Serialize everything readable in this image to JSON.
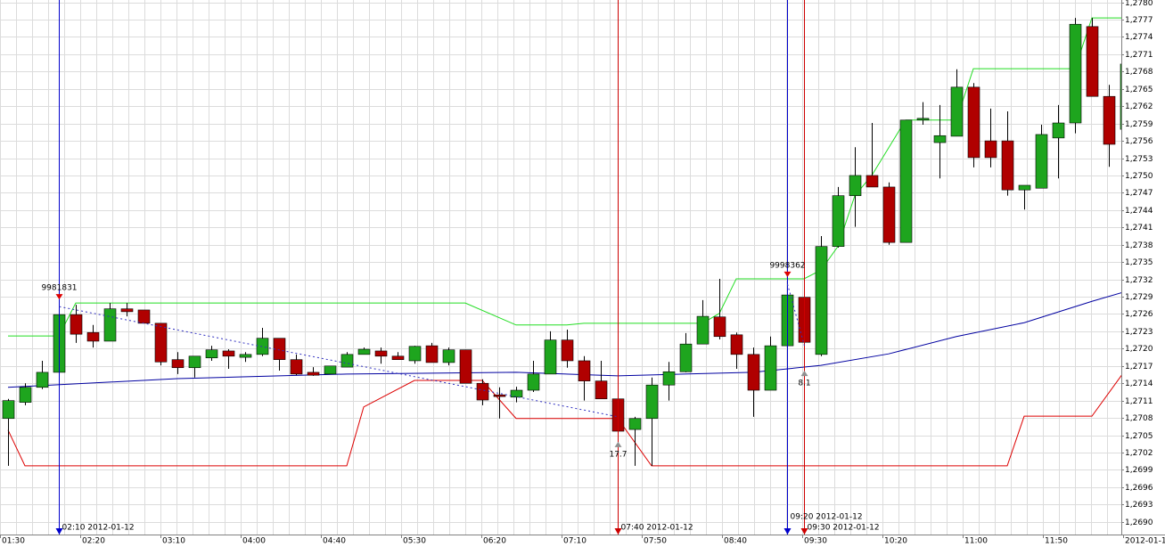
{
  "chart_data": {
    "type": "candlestick",
    "open": [
      1.27079,
      1.27107,
      1.27133,
      1.27159,
      1.27259,
      1.27228,
      1.27213,
      1.27269,
      1.27267,
      1.27244,
      1.27181,
      1.27167,
      1.27184,
      1.27196,
      1.27185,
      1.2719,
      1.27218,
      1.27181,
      1.27159,
      1.27156,
      1.27168,
      1.2719,
      1.27196,
      1.27187,
      1.27179,
      1.27205,
      1.27176,
      1.27198,
      1.2714,
      1.2712,
      1.27116,
      1.27128,
      1.27156,
      1.27215,
      1.27179,
      1.27144,
      1.27113,
      1.2706,
      1.27079,
      1.27137,
      1.2716,
      1.27208,
      1.27255,
      1.27224,
      1.2719,
      1.27128,
      1.27205,
      1.27289,
      1.2719,
      1.27377,
      1.27465,
      1.275,
      1.2748,
      1.27384,
      1.27596,
      1.27557,
      1.27568,
      1.27653,
      1.2756,
      1.2756,
      1.27475,
      1.27478,
      1.27565,
      1.27591,
      1.27758,
      1.27637,
      1.2758
    ],
    "high": [
      1.27113,
      1.2714,
      1.27179,
      1.27279,
      1.27276,
      1.27241,
      1.27279,
      1.27279,
      1.27267,
      1.27244,
      1.27194,
      1.27187,
      1.27205,
      1.27199,
      1.27194,
      1.27236,
      1.27218,
      1.2719,
      1.27168,
      1.2717,
      1.27194,
      1.27202,
      1.27202,
      1.27194,
      1.27205,
      1.2721,
      1.27202,
      1.27198,
      1.27147,
      1.27133,
      1.27134,
      1.27179,
      1.2723,
      1.27233,
      1.27187,
      1.27179,
      1.27133,
      1.27082,
      1.2715,
      1.27177,
      1.27227,
      1.27284,
      1.27321,
      1.27228,
      1.27202,
      1.27221,
      1.27318,
      1.27329,
      1.27395,
      1.2748,
      1.27549,
      1.27591,
      1.27488,
      1.27596,
      1.27627,
      1.27622,
      1.27684,
      1.2766,
      1.27616,
      1.27611,
      1.27483,
      1.27588,
      1.27622,
      1.27773,
      1.27773,
      1.27657,
      1.27693
    ],
    "low": [
      1.26997,
      1.27102,
      1.2713,
      1.27159,
      1.2721,
      1.27202,
      1.27213,
      1.27256,
      1.27244,
      1.27171,
      1.27156,
      1.2715,
      1.27179,
      1.27165,
      1.27177,
      1.27187,
      1.27162,
      1.27154,
      1.27153,
      1.27156,
      1.27168,
      1.2719,
      1.27174,
      1.27181,
      1.27174,
      1.27176,
      1.27171,
      1.2714,
      1.27102,
      1.27079,
      1.27107,
      1.27125,
      1.27156,
      1.27167,
      1.2711,
      1.27113,
      1.27048,
      1.26997,
      1.26997,
      1.2711,
      1.27159,
      1.27208,
      1.27216,
      1.27165,
      1.27082,
      1.27128,
      1.27202,
      1.27171,
      1.27187,
      1.27375,
      1.27411,
      1.2748,
      1.2738,
      1.27384,
      1.27588,
      1.27495,
      1.27568,
      1.27514,
      1.27514,
      1.27465,
      1.27441,
      1.27478,
      1.27495,
      1.27573,
      1.27637,
      1.27515,
      1.2758
    ],
    "close": [
      1.2711,
      1.27133,
      1.27159,
      1.27259,
      1.27225,
      1.27213,
      1.27269,
      1.27264,
      1.27244,
      1.27177,
      1.27167,
      1.27187,
      1.27198,
      1.27187,
      1.2719,
      1.27218,
      1.27181,
      1.27156,
      1.27154,
      1.2717,
      1.2719,
      1.27199,
      1.27187,
      1.27181,
      1.27204,
      1.27176,
      1.27198,
      1.2714,
      1.27111,
      1.27117,
      1.27128,
      1.27156,
      1.27215,
      1.27179,
      1.27144,
      1.27113,
      1.27057,
      1.27079,
      1.27137,
      1.2716,
      1.27208,
      1.27256,
      1.27221,
      1.2719,
      1.27128,
      1.27205,
      1.27293,
      1.27211,
      1.27377,
      1.27465,
      1.275,
      1.2748,
      1.27384,
      1.27596,
      1.27599,
      1.27569,
      1.27653,
      1.27531,
      1.27531,
      1.27475,
      1.27483,
      1.27571,
      1.27591,
      1.27762,
      1.27637,
      1.27554,
      1.27693
    ],
    "up_color": "#1ea51e",
    "down_color": "#b00000",
    "ylim": [
      1.26878,
      1.27804
    ],
    "yticks": [
      {
        "value": 1.269,
        "label": "1,2690"
      },
      {
        "value": 1.2693,
        "label": "1,2693"
      },
      {
        "value": 1.2696,
        "label": "1,2696"
      },
      {
        "value": 1.2699,
        "label": "1,2699"
      },
      {
        "value": 1.2702,
        "label": "1,2702"
      },
      {
        "value": 1.2705,
        "label": "1,2705"
      },
      {
        "value": 1.2708,
        "label": "1,2708"
      },
      {
        "value": 1.2711,
        "label": "1,2711"
      },
      {
        "value": 1.2714,
        "label": "1,2714"
      },
      {
        "value": 1.2717,
        "label": "1,2717"
      },
      {
        "value": 1.272,
        "label": "1,2720"
      },
      {
        "value": 1.2723,
        "label": "1,2723"
      },
      {
        "value": 1.2726,
        "label": "1,2726"
      },
      {
        "value": 1.2729,
        "label": "1,2729"
      },
      {
        "value": 1.2732,
        "label": "1,2732"
      },
      {
        "value": 1.2735,
        "label": "1,2735"
      },
      {
        "value": 1.2738,
        "label": "1,2738"
      },
      {
        "value": 1.2741,
        "label": "1,2741"
      },
      {
        "value": 1.2744,
        "label": "1,2744"
      },
      {
        "value": 1.2747,
        "label": "1,2747"
      },
      {
        "value": 1.275,
        "label": "1,2750"
      },
      {
        "value": 1.2753,
        "label": "1,2753"
      },
      {
        "value": 1.2756,
        "label": "1,2756"
      },
      {
        "value": 1.2759,
        "label": "1,2759"
      },
      {
        "value": 1.2762,
        "label": "1,2762"
      },
      {
        "value": 1.2765,
        "label": "1,2765"
      },
      {
        "value": 1.2768,
        "label": "1,2768"
      },
      {
        "value": 1.2771,
        "label": "1,2771"
      },
      {
        "value": 1.2774,
        "label": "1,2774"
      },
      {
        "value": 1.2777,
        "label": "1,2777"
      },
      {
        "value": 1.278,
        "label": "1,2780"
      }
    ],
    "xtick_labels": [
      "01:30",
      "02:20",
      "03:10",
      "04:00",
      "04:40",
      "05:30",
      "06:20",
      "07:10",
      "07:50",
      "08:40",
      "09:30",
      "10:20",
      "11:00",
      "11:50",
      "2012-01-1"
    ],
    "grid": true,
    "lines": [
      {
        "color": "#22dd22",
        "x": [
          0,
          3,
          4,
          27,
          30,
          33,
          34,
          41,
          42,
          43,
          47,
          48,
          49,
          50,
          51,
          53,
          56,
          57,
          63,
          64,
          66
        ],
        "values": [
          1.27222,
          1.27222,
          1.27279,
          1.27279,
          1.27241,
          1.27241,
          1.27244,
          1.27244,
          1.27261,
          1.27321,
          1.27321,
          1.27336,
          1.27377,
          1.27465,
          1.275,
          1.27596,
          1.27596,
          1.27685,
          1.27685,
          1.27773,
          1.27773
        ]
      },
      {
        "color": "#dd0000",
        "x": [
          0,
          1,
          20,
          21,
          24,
          28,
          30,
          36,
          38,
          59,
          60,
          64,
          66
        ],
        "values": [
          1.27059,
          1.26997,
          1.26997,
          1.27099,
          1.27145,
          1.27145,
          1.27079,
          1.27079,
          1.26997,
          1.26997,
          1.27083,
          1.27083,
          1.27164
        ]
      },
      {
        "color": "#0000a0",
        "x": [
          0,
          10,
          20,
          30,
          36,
          44,
          48,
          52,
          56,
          60,
          64,
          66
        ],
        "values": [
          1.27133,
          1.27148,
          1.27156,
          1.27159,
          1.27153,
          1.27159,
          1.27171,
          1.27191,
          1.27221,
          1.27245,
          1.27282,
          1.27299
        ]
      }
    ],
    "events": [
      {
        "candle": 3,
        "label": "02:10 2012-01-12",
        "color": "#0000cc"
      },
      {
        "candle": 36,
        "label": "07:40 2012-01-12",
        "color": "#cc0000"
      },
      {
        "candle": 46,
        "label": "09:20 2012-01-12",
        "color": "#0000cc"
      },
      {
        "candle": 47,
        "label": "09:30 2012-01-12",
        "color": "#cc0000"
      }
    ],
    "trades": [
      {
        "candle": 3,
        "label": 9981831,
        "marker": "down"
      },
      {
        "candle": 36,
        "label": 17.7,
        "marker": "up"
      },
      {
        "candle": 46,
        "label": 9998362,
        "marker": "down"
      },
      {
        "candle": 47,
        "label": 8.1,
        "marker": "up"
      }
    ]
  }
}
